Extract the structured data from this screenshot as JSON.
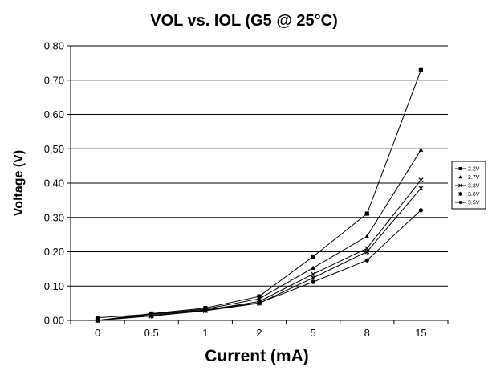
{
  "chart_data": {
    "type": "line",
    "title": "VOL vs. IOL (G5 @ 25°C)",
    "xlabel": "Current (mA)",
    "ylabel": "Voltage (V)",
    "categories": [
      "0",
      "0.5",
      "1",
      "2",
      "5",
      "8",
      "15"
    ],
    "ylim": [
      0,
      0.8
    ],
    "yticks": [
      "0.00",
      "0.10",
      "0.20",
      "0.30",
      "0.40",
      "0.50",
      "0.60",
      "0.70",
      "0.80"
    ],
    "grid": true,
    "legend_position": "right",
    "series": [
      {
        "name": "2.2V",
        "marker": "square",
        "values": [
          0.0,
          0.02,
          0.036,
          0.07,
          0.186,
          0.311,
          0.729
        ]
      },
      {
        "name": "2.7V",
        "marker": "triangle",
        "values": [
          0.0,
          0.018,
          0.033,
          0.063,
          0.153,
          0.245,
          0.497
        ]
      },
      {
        "name": "3.3V",
        "marker": "x",
        "values": [
          0.0,
          0.015,
          0.03,
          0.055,
          0.135,
          0.21,
          0.409
        ]
      },
      {
        "name": "3.6V",
        "marker": "star",
        "values": [
          0.0,
          0.013,
          0.028,
          0.05,
          0.124,
          0.2,
          0.385
        ]
      },
      {
        "name": "5.5V",
        "marker": "circle",
        "values": [
          0.008,
          0.018,
          0.03,
          0.051,
          0.112,
          0.175,
          0.321
        ]
      }
    ]
  }
}
